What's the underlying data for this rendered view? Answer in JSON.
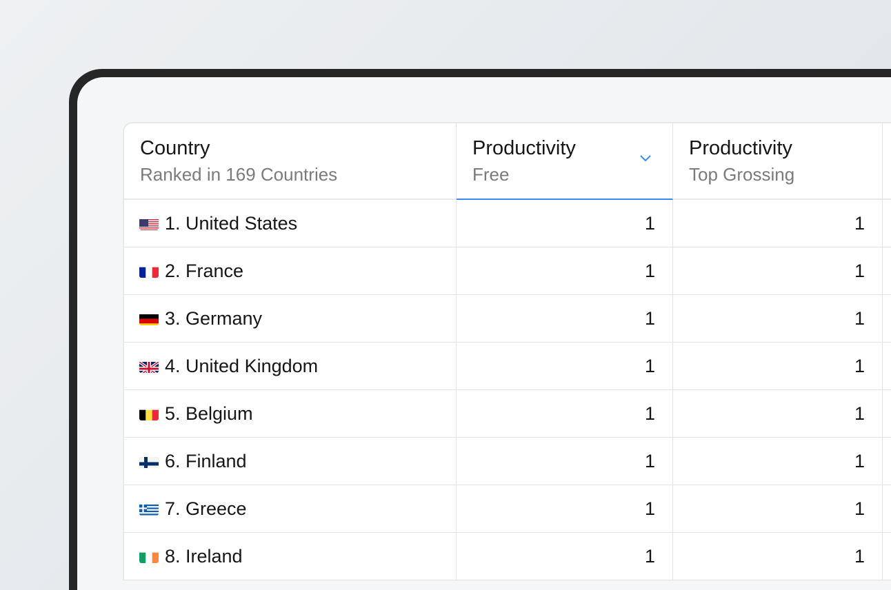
{
  "table": {
    "columns": [
      {
        "title": "Country",
        "subtitle": "Ranked in 169 Countries"
      },
      {
        "title": "Productivity",
        "subtitle": "Free",
        "sorted": true
      },
      {
        "title": "Productivity",
        "subtitle": "Top Grossing"
      }
    ],
    "accent": "#3b8af0",
    "rows": [
      {
        "country": "1. United States",
        "flag": "us",
        "free": "1",
        "grossing": "1"
      },
      {
        "country": "2. France",
        "flag": "fr",
        "free": "1",
        "grossing": "1"
      },
      {
        "country": "3. Germany",
        "flag": "de",
        "free": "1",
        "grossing": "1"
      },
      {
        "country": "4. United Kingdom",
        "flag": "gb",
        "free": "1",
        "grossing": "1"
      },
      {
        "country": "5. Belgium",
        "flag": "be",
        "free": "1",
        "grossing": "1"
      },
      {
        "country": "6. Finland",
        "flag": "fi",
        "free": "1",
        "grossing": "1"
      },
      {
        "country": "7. Greece",
        "flag": "gr",
        "free": "1",
        "grossing": "1"
      },
      {
        "country": "8. Ireland",
        "flag": "ie",
        "free": "1",
        "grossing": "1"
      }
    ]
  }
}
